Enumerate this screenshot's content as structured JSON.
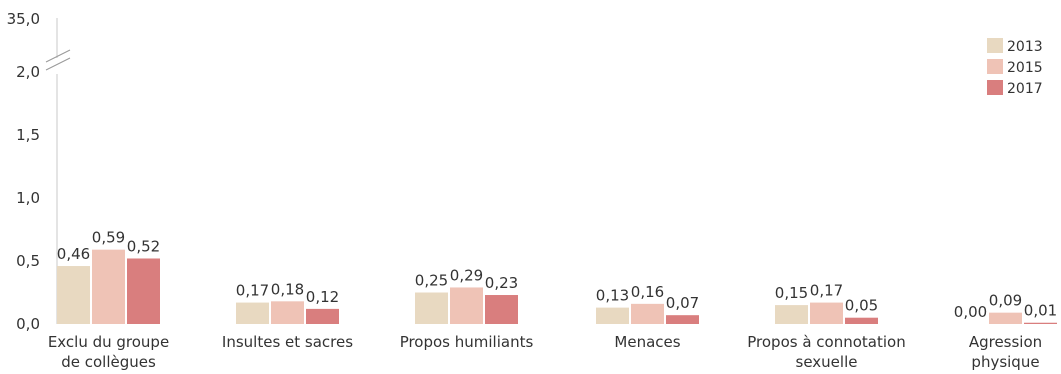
{
  "chart_data": {
    "type": "bar",
    "categories": [
      [
        "Exclu du groupe",
        "de collègues"
      ],
      [
        "Insultes et sacres"
      ],
      [
        "Propos humiliants"
      ],
      [
        "Menaces"
      ],
      [
        "Propos à connotation",
        "sexuelle"
      ],
      [
        "Agression",
        "physique"
      ]
    ],
    "series": [
      {
        "name": "2013",
        "color": "#e8d9c1",
        "values": [
          0.46,
          0.17,
          0.25,
          0.13,
          0.15,
          0.0
        ],
        "labels": [
          "0,46",
          "0,17",
          "0,25",
          "0,13",
          "0,15",
          "0,00"
        ]
      },
      {
        "name": "2015",
        "color": "#efc3b6",
        "values": [
          0.59,
          0.18,
          0.29,
          0.16,
          0.17,
          0.09
        ],
        "labels": [
          "0,59",
          "0,18",
          "0,29",
          "0,16",
          "0,17",
          "0,09"
        ]
      },
      {
        "name": "2017",
        "color": "#d97e7e",
        "values": [
          0.52,
          0.12,
          0.23,
          0.07,
          0.05,
          0.01
        ],
        "labels": [
          "0,52",
          "0,12",
          "0,23",
          "0,07",
          "0,05",
          "0,01"
        ]
      }
    ],
    "yticks": [
      {
        "value": 0.0,
        "label": "0,0"
      },
      {
        "value": 0.5,
        "label": "0,5"
      },
      {
        "value": 1.0,
        "label": "1,0"
      },
      {
        "value": 1.5,
        "label": "1,5"
      },
      {
        "value": 2.0,
        "label": "2,0"
      }
    ],
    "axis_break": {
      "label": "35,0"
    },
    "ylim": [
      0,
      2.0
    ],
    "legend_position": "top-right",
    "grid": false,
    "title": "",
    "xlabel": "",
    "ylabel": ""
  }
}
